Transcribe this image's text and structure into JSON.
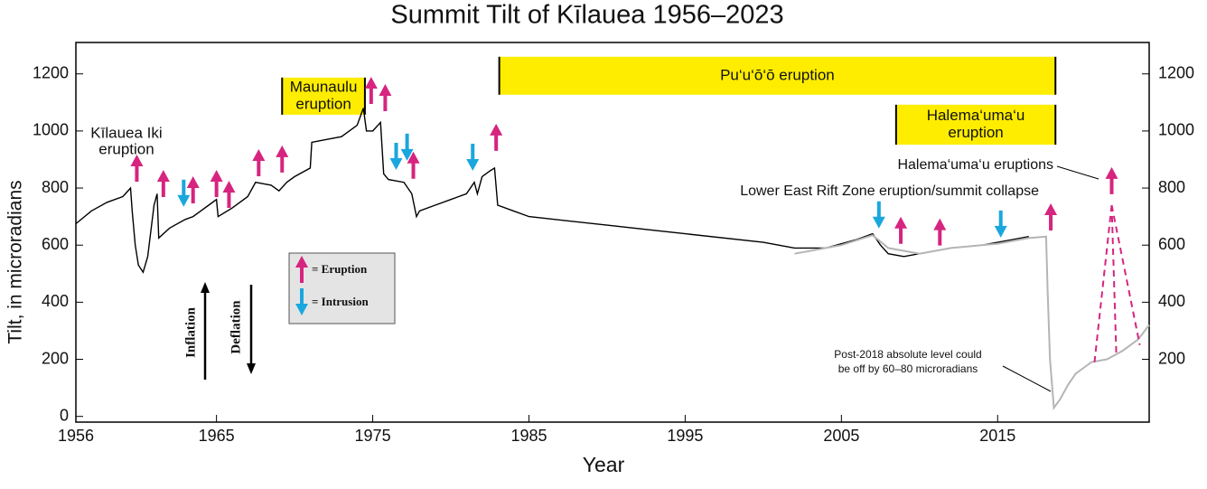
{
  "chart_data": {
    "type": "line",
    "title": "Summit Tilt of Kīlauea 1956–2023",
    "x_label": "Year",
    "y_label": "Tilt, in microradians",
    "xlim": [
      1956,
      2024.7
    ],
    "xticks": [
      1956,
      1965,
      1975,
      1985,
      1995,
      2005,
      2015
    ],
    "ylim": [
      -20,
      1310
    ],
    "yticks": [
      0,
      200,
      400,
      600,
      800,
      1000,
      1200
    ],
    "y2lim": [
      -20,
      1310
    ],
    "y2ticks": [
      200,
      400,
      600,
      800,
      1000,
      1200
    ],
    "lines": [
      {
        "color": "#000000",
        "x": [
          1956,
          1957,
          1958,
          1959,
          1959.5,
          1959.6,
          1959.8,
          1960,
          1960.3,
          1960.6,
          1961,
          1961.2,
          1961.3,
          1962,
          1963,
          1963.5,
          1964,
          1964.5,
          1965,
          1965.1,
          1966,
          1967,
          1967.5,
          1968,
          1968.5,
          1969,
          1969.5,
          1970,
          1971,
          1971.1,
          1972,
          1973,
          1973.5,
          1974,
          1974.4,
          1974.6,
          1975,
          1975.5,
          1975.7,
          1976,
          1977,
          1977.5,
          1977.8,
          1978,
          1979,
          1980,
          1981,
          1981.5,
          1981.7,
          1982,
          1982.5,
          1982.8,
          1983,
          1984,
          1985,
          1990,
          1995,
          2000,
          2002,
          2004,
          2006,
          2007,
          2007.5,
          2008,
          2009,
          2010,
          2012,
          2014,
          2016,
          2017
        ],
        "values": [
          675,
          720,
          750,
          770,
          800,
          720,
          600,
          530,
          505,
          560,
          740,
          780,
          625,
          660,
          690,
          700,
          720,
          740,
          760,
          700,
          730,
          770,
          820,
          815,
          810,
          790,
          820,
          840,
          870,
          960,
          970,
          980,
          1000,
          1020,
          1080,
          1000,
          1000,
          1030,
          850,
          830,
          820,
          780,
          700,
          720,
          740,
          760,
          780,
          820,
          780,
          840,
          860,
          870,
          740,
          720,
          700,
          670,
          640,
          610,
          590,
          590,
          620,
          640,
          600,
          570,
          560,
          570,
          590,
          600,
          620,
          630
        ]
      },
      {
        "color": "#b5b5b5",
        "x": [
          2002,
          2005,
          2007,
          2008,
          2010,
          2012,
          2015,
          2017,
          2018.1,
          2018.2,
          2018.35,
          2018.6,
          2019,
          2019.5,
          2020,
          2020.5,
          2021,
          2022,
          2023,
          2024,
          2024.7
        ],
        "values": [
          570,
          600,
          635,
          590,
          570,
          590,
          605,
          625,
          630,
          440,
          200,
          30,
          60,
          110,
          150,
          170,
          190,
          200,
          230,
          270,
          320
        ]
      }
    ],
    "eruption_lines": {
      "color": "#d6247f",
      "apex_x": 2022.3,
      "apex_value": 740,
      "x": [
        2021.2,
        2022.6,
        2024.1
      ],
      "values": [
        190,
        210,
        250
      ]
    },
    "eruptions": {
      "color": "#d6247f",
      "x": [
        1959.9,
        1961.6,
        1963.5,
        1965.0,
        1965.8,
        1967.7,
        1969.2,
        1974.9,
        1975.8,
        1977.6,
        1982.9,
        2008.8,
        2011.3,
        2018.4,
        2022.3
      ],
      "values": [
        870,
        816,
        794,
        816,
        778,
        889,
        902,
        1142,
        1117,
        880,
        978,
        652,
        646,
        699,
        826
      ]
    },
    "intrusions": {
      "color": "#1aa7dd",
      "x": [
        1962.9,
        1976.5,
        1977.2,
        1981.4,
        2007.4,
        2015.2
      ],
      "values": [
        782,
        911,
        943,
        908,
        706,
        674
      ]
    },
    "periods": [
      {
        "lines": [
          "Maunaulu",
          "eruption"
        ],
        "x": [
          1969.2,
          1974.5
        ],
        "values": [
          1187,
          1057
        ],
        "color": "#ffed00"
      },
      {
        "lines": [
          "Pu‘u‘ō‘ō eruption"
        ],
        "x": [
          1983.1,
          2018.7
        ],
        "values": [
          1260,
          1127
        ],
        "color": "#ffed00"
      },
      {
        "lines": [
          "Halema‘uma‘u",
          "eruption"
        ],
        "x": [
          2008.5,
          2018.7
        ],
        "values": [
          1092,
          952
        ],
        "color": "#ffed00"
      }
    ],
    "annotations": [
      {
        "lines": [
          "Kīlauea Iki",
          "eruption"
        ]
      },
      {
        "lines": [
          "Halema‘uma‘u eruptions"
        ]
      },
      {
        "lines": [
          "Lower East Rift Zone eruption/summit collapse"
        ]
      },
      {
        "lines": [
          "Post-2018 absolute level could",
          "be off by 60–80 microradians"
        ]
      }
    ],
    "key": {
      "eruption": "= Eruption",
      "intrusion": "= Intrusion",
      "inflation": "Inflation",
      "deflation": "Deflation"
    }
  }
}
